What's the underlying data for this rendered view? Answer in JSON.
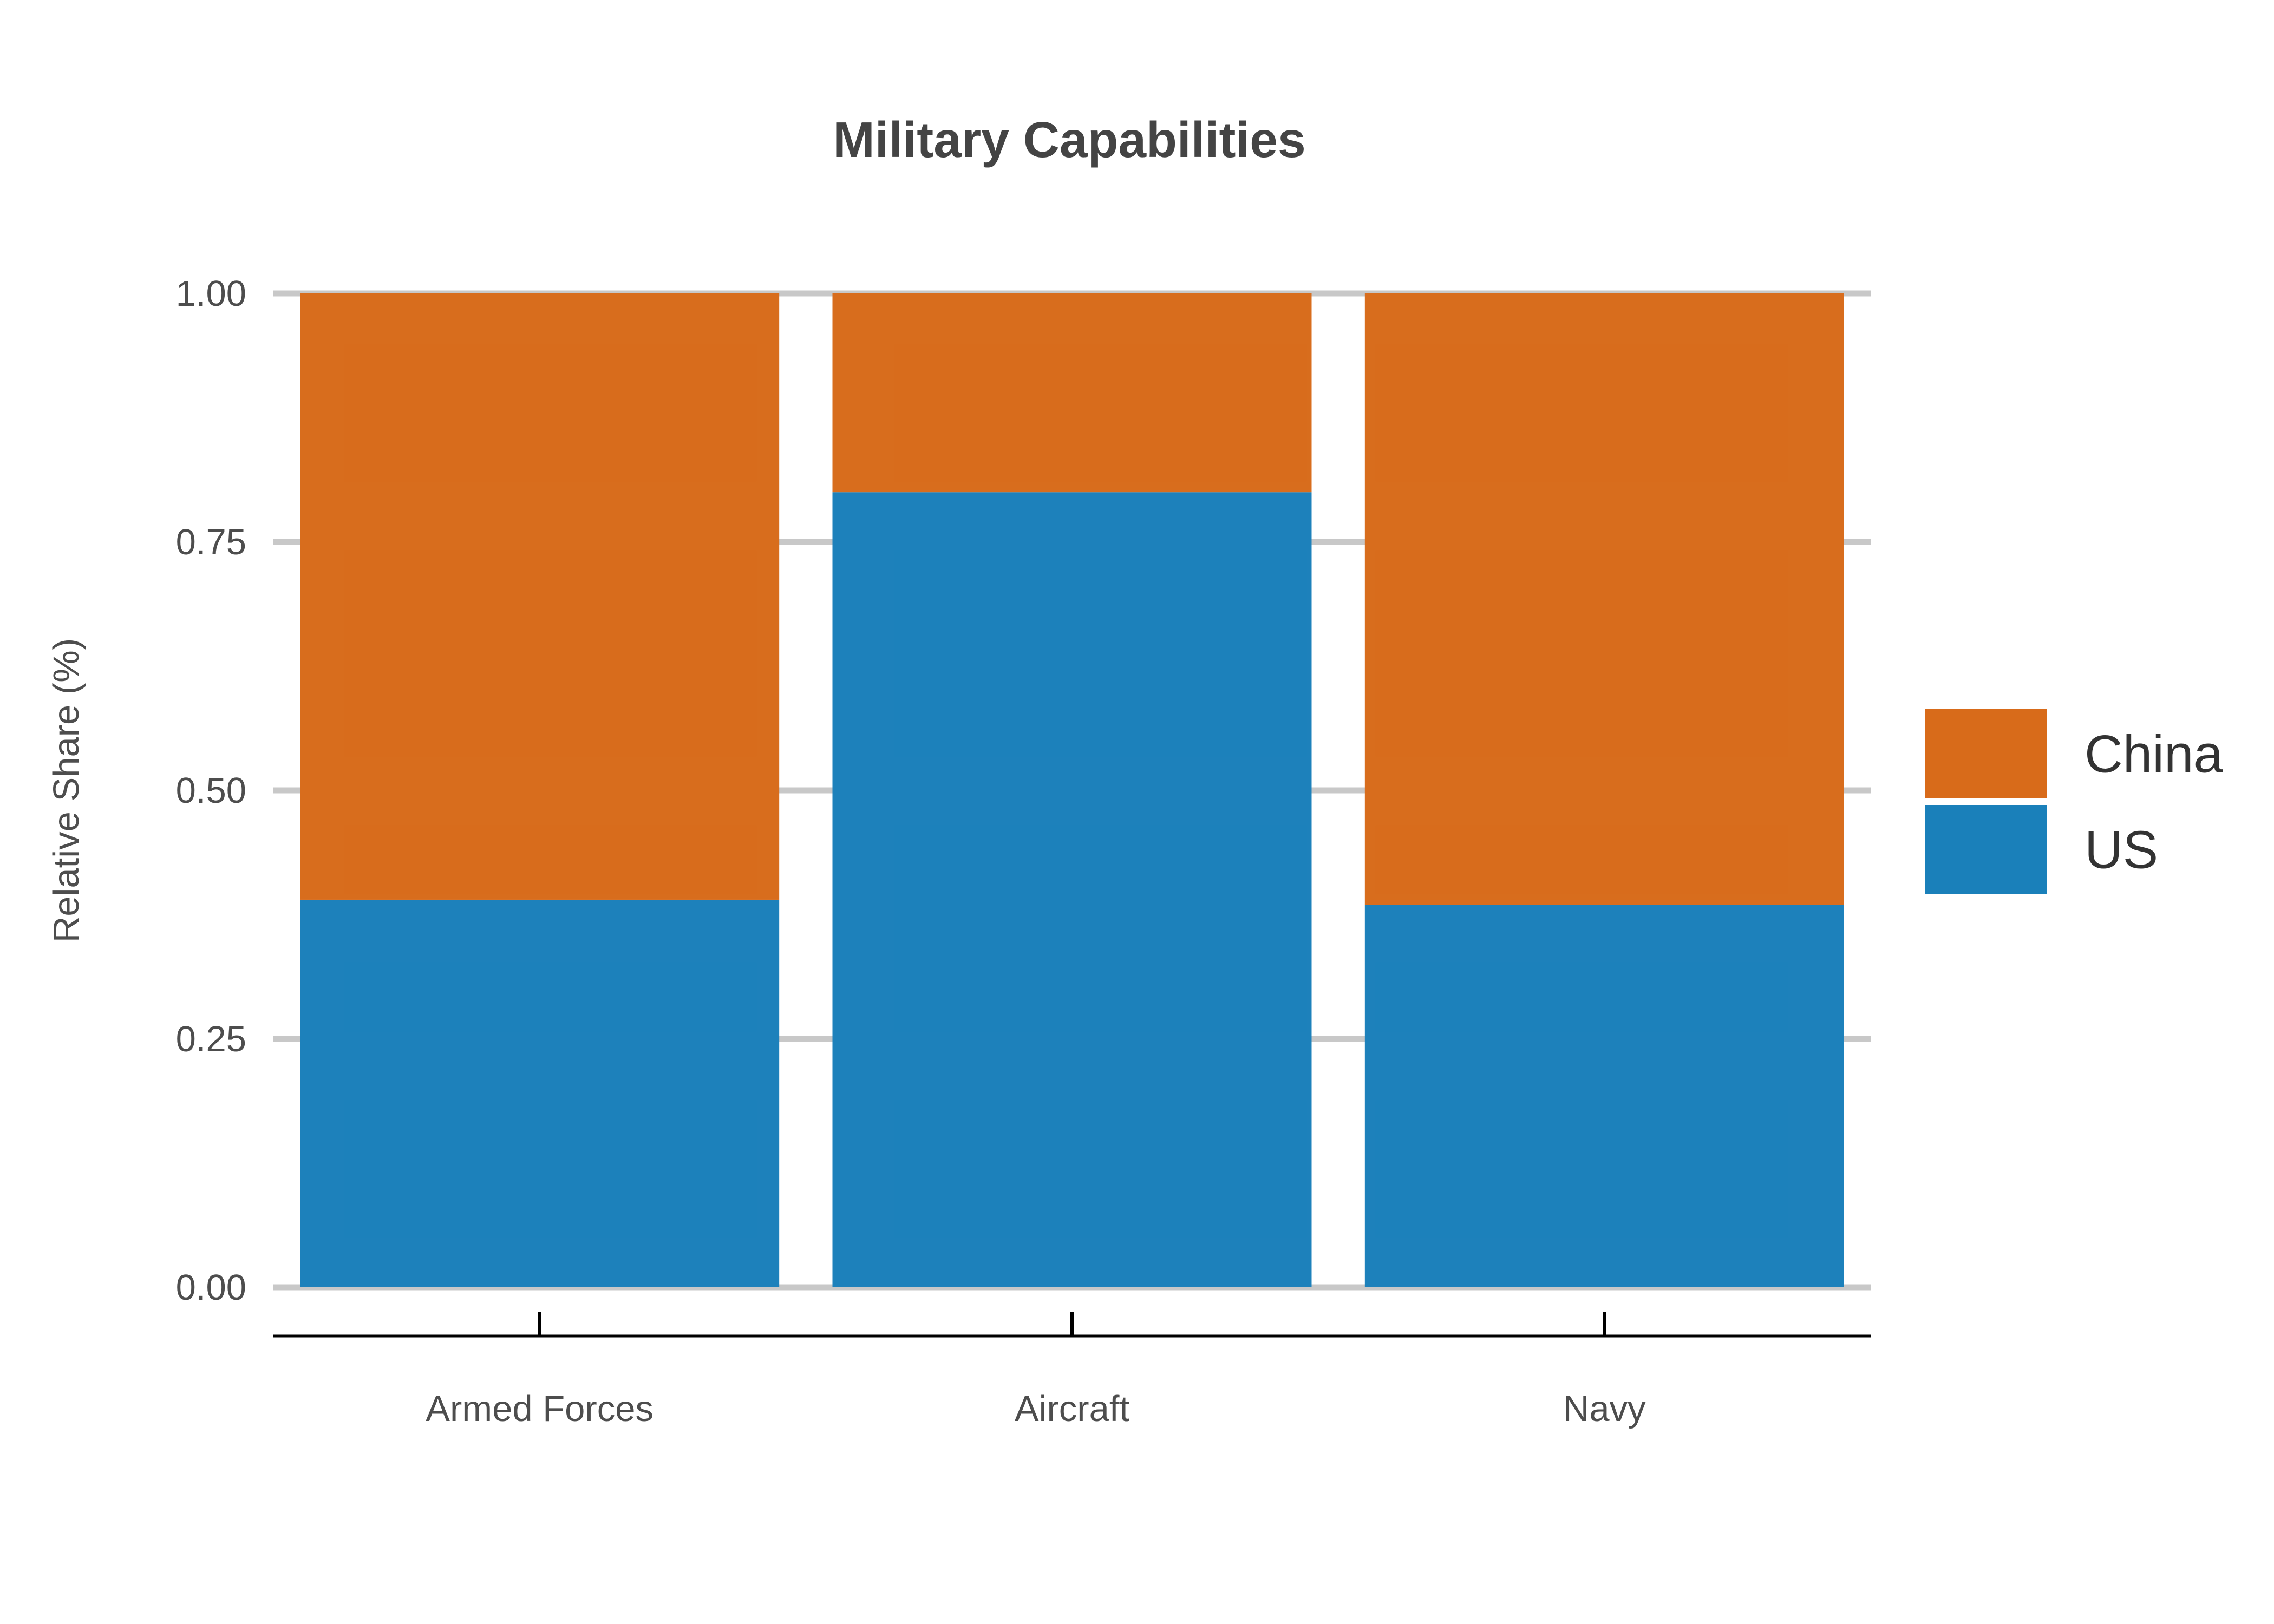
{
  "chart_data": {
    "type": "bar",
    "stacked": true,
    "title": "Military Capabilities",
    "xlabel": "",
    "ylabel": "Relative Share (%)",
    "ylim": [
      0,
      1
    ],
    "yticks": [
      "0.00",
      "0.25",
      "0.50",
      "0.75",
      "1.00"
    ],
    "categories": [
      "Armed Forces",
      "Aircraft",
      "Navy"
    ],
    "series": [
      {
        "name": "US",
        "values": [
          0.39,
          0.8,
          0.385
        ],
        "color": "#1a80ba"
      },
      {
        "name": "China",
        "values": [
          0.61,
          0.2,
          0.615
        ],
        "color": "#d86b1a"
      }
    ],
    "legend": {
      "position": "right",
      "order": [
        "China",
        "US"
      ]
    },
    "grid": true
  }
}
